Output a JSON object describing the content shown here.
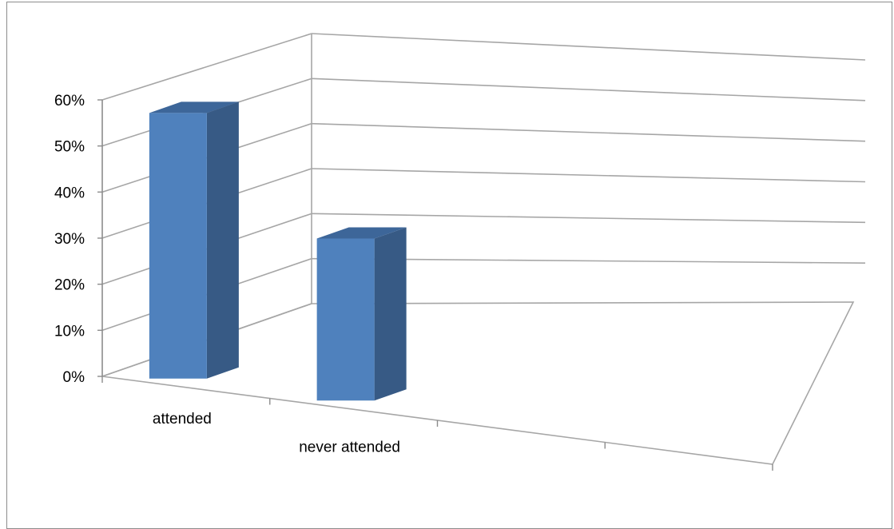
{
  "chart_data": {
    "type": "bar",
    "style": "3d-column",
    "categories": [
      "attended",
      "never attended"
    ],
    "series": [
      {
        "values": [
          0.59,
          0.36
        ]
      }
    ],
    "y_tick_labels": [
      "0%",
      "10%",
      "20%",
      "30%",
      "40%",
      "50%",
      "60%"
    ],
    "ylim": [
      0,
      0.6
    ],
    "y_format": "percent",
    "grid": true,
    "legend": "none",
    "colors": {
      "bar_front": "#4f81bd",
      "bar_side": "#375a85",
      "bar_top": "#3d6699",
      "grid": "#a6a6a6",
      "axis": "#8c8c8c"
    }
  }
}
